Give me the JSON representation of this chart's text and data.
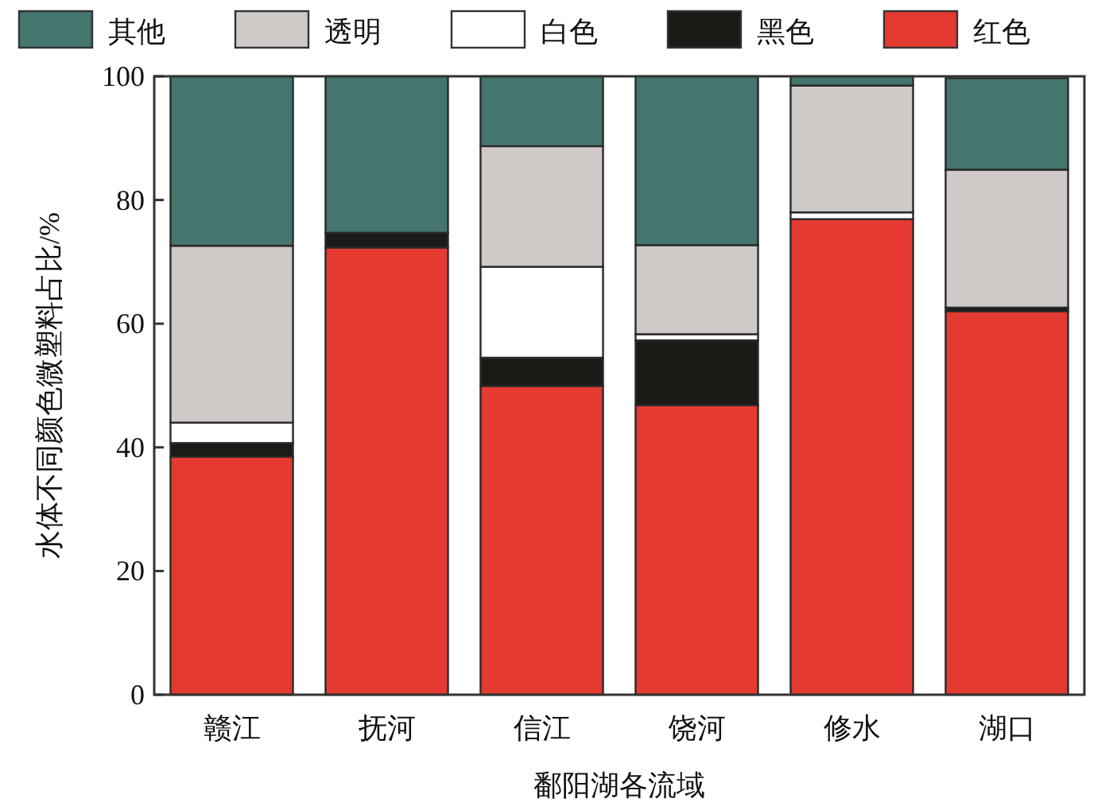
{
  "chart_data": {
    "type": "bar",
    "stacked": true,
    "xlabel": "鄱阳湖各流域",
    "ylabel": "水体不同颜色微塑料占比/%",
    "categories": [
      "赣江",
      "抚河",
      "信江",
      "饶河",
      "修水",
      "湖口"
    ],
    "series": [
      {
        "name": "红色",
        "color": "#e43a31",
        "values": [
          38.5,
          72.3,
          49.9,
          46.8,
          76.9,
          62.0
        ]
      },
      {
        "name": "黑色",
        "color": "#1c1a17",
        "values": [
          2.2,
          2.4,
          4.6,
          10.5,
          0,
          0.6
        ]
      },
      {
        "name": "白色",
        "color": "#ffffff",
        "values": [
          3.3,
          0,
          14.7,
          1.0,
          1.1,
          null
        ]
      },
      {
        "name": "透明",
        "color": "#cfc9c7",
        "values": [
          28.6,
          0,
          19.5,
          14.4,
          20.5,
          22.3
        ]
      },
      {
        "name": "其他",
        "color": "#44756f",
        "values": [
          27.4,
          25.3,
          11.3,
          27.3,
          1.5,
          14.8
        ]
      }
    ],
    "ylim": [
      0,
      100
    ],
    "yticks": [
      0,
      20,
      40,
      60,
      80,
      100
    ],
    "legend": "top"
  }
}
